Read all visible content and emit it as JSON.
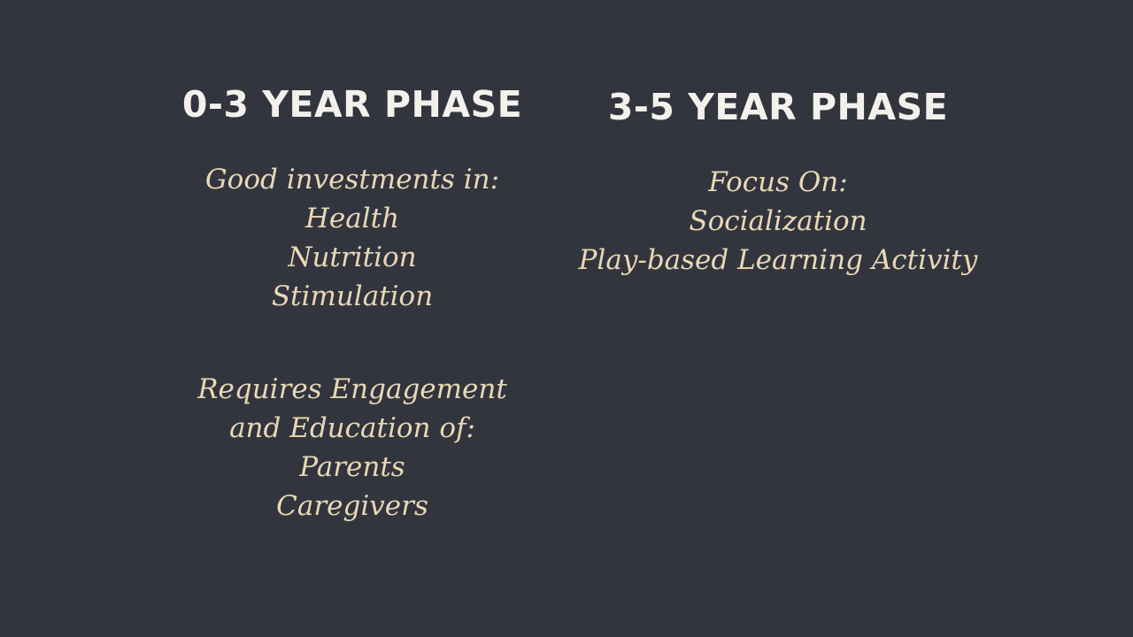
{
  "slide": {
    "left": {
      "heading": "0-3 YEAR PHASE",
      "blocks": [
        [
          "Good investments in:",
          "Health",
          "Nutrition",
          "Stimulation"
        ],
        [
          "Requires Engagement",
          "and Education of:",
          "Parents",
          "Caregivers"
        ]
      ]
    },
    "right": {
      "heading": "3-5 YEAR PHASE",
      "blocks": [
        [
          "Focus On:",
          "Socialization",
          "Play-based Learning Activity"
        ]
      ]
    },
    "colors": {
      "background": "#32353e",
      "heading": "#f4f1ec",
      "body_text": "#e9d8b6"
    }
  }
}
